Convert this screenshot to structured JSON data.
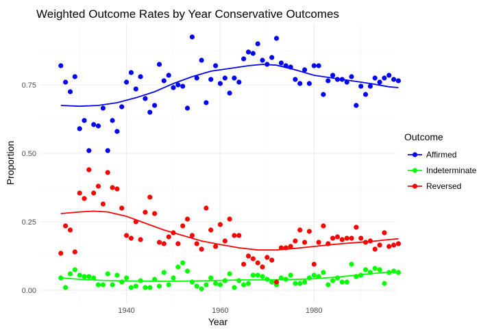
{
  "chart_data": {
    "type": "scatter",
    "title": "Weighted Outcome Rates by Year Conservative Outcomes",
    "xlabel": "Year",
    "ylabel": "Proportion",
    "xlim": [
      1921.5,
      1997.5
    ],
    "ylim": [
      -0.045,
      0.975
    ],
    "x_ticks": [
      1940,
      1960,
      1980
    ],
    "y_ticks": [
      0.0,
      0.25,
      0.5,
      0.75
    ],
    "y_tick_labels": [
      "0.00",
      "0.25",
      "0.50",
      "0.75"
    ],
    "grid": true,
    "legend_position": "right",
    "legend_title": "Outcome",
    "series": [
      {
        "name": "Affirmed",
        "color": "#0000ff",
        "points": [
          [
            1926,
            0.82
          ],
          [
            1927,
            0.76
          ],
          [
            1928,
            0.725
          ],
          [
            1929,
            0.78
          ],
          [
            1930,
            0.59
          ],
          [
            1931,
            0.62
          ],
          [
            1932,
            0.51
          ],
          [
            1933,
            0.605
          ],
          [
            1934,
            0.6
          ],
          [
            1935,
            0.665
          ],
          [
            1936,
            0.51
          ],
          [
            1937,
            0.62
          ],
          [
            1938,
            0.58
          ],
          [
            1939,
            0.67
          ],
          [
            1940,
            0.76
          ],
          [
            1941,
            0.795
          ],
          [
            1942,
            0.735
          ],
          [
            1943,
            0.78
          ],
          [
            1944,
            0.7
          ],
          [
            1945,
            0.65
          ],
          [
            1946,
            0.675
          ],
          [
            1947,
            0.825
          ],
          [
            1948,
            0.765
          ],
          [
            1949,
            0.785
          ],
          [
            1950,
            0.74
          ],
          [
            1951,
            0.75
          ],
          [
            1952,
            0.745
          ],
          [
            1953,
            0.665
          ],
          [
            1954,
            0.925
          ],
          [
            1955,
            0.775
          ],
          [
            1956,
            0.84
          ],
          [
            1957,
            0.685
          ],
          [
            1958,
            0.77
          ],
          [
            1959,
            0.82
          ],
          [
            1960,
            0.755
          ],
          [
            1961,
            0.775
          ],
          [
            1962,
            0.72
          ],
          [
            1963,
            0.775
          ],
          [
            1964,
            0.76
          ],
          [
            1965,
            0.845
          ],
          [
            1966,
            0.87
          ],
          [
            1967,
            0.865
          ],
          [
            1968,
            0.9
          ],
          [
            1969,
            0.84
          ],
          [
            1970,
            0.825
          ],
          [
            1971,
            0.85
          ],
          [
            1972,
            0.92
          ],
          [
            1973,
            0.83
          ],
          [
            1974,
            0.82
          ],
          [
            1975,
            0.815
          ],
          [
            1976,
            0.77
          ],
          [
            1977,
            0.755
          ],
          [
            1978,
            0.805
          ],
          [
            1979,
            0.755
          ],
          [
            1980,
            0.82
          ],
          [
            1981,
            0.82
          ],
          [
            1982,
            0.715
          ],
          [
            1983,
            0.765
          ],
          [
            1984,
            0.785
          ],
          [
            1985,
            0.77
          ],
          [
            1986,
            0.77
          ],
          [
            1987,
            0.76
          ],
          [
            1988,
            0.78
          ],
          [
            1989,
            0.675
          ],
          [
            1990,
            0.745
          ],
          [
            1991,
            0.715
          ],
          [
            1992,
            0.745
          ],
          [
            1993,
            0.775
          ],
          [
            1994,
            0.76
          ],
          [
            1995,
            0.775
          ],
          [
            1996,
            0.785
          ],
          [
            1997,
            0.77
          ],
          [
            1998,
            0.765
          ]
        ],
        "trend": [
          [
            1926,
            0.675
          ],
          [
            1930,
            0.672
          ],
          [
            1934,
            0.675
          ],
          [
            1938,
            0.685
          ],
          [
            1942,
            0.703
          ],
          [
            1946,
            0.725
          ],
          [
            1950,
            0.755
          ],
          [
            1954,
            0.78
          ],
          [
            1958,
            0.8
          ],
          [
            1962,
            0.81
          ],
          [
            1966,
            0.82
          ],
          [
            1969,
            0.825
          ],
          [
            1972,
            0.822
          ],
          [
            1976,
            0.805
          ],
          [
            1980,
            0.785
          ],
          [
            1984,
            0.775
          ],
          [
            1988,
            0.765
          ],
          [
            1992,
            0.755
          ],
          [
            1996,
            0.743
          ],
          [
            1998,
            0.74
          ]
        ]
      },
      {
        "name": "Indeterminate",
        "color": "#00ff00",
        "points": [
          [
            1926,
            0.045
          ],
          [
            1927,
            0.01
          ],
          [
            1928,
            0.06
          ],
          [
            1929,
            0.075
          ],
          [
            1930,
            0.055
          ],
          [
            1931,
            0.05
          ],
          [
            1932,
            0.05
          ],
          [
            1933,
            0.045
          ],
          [
            1934,
            0.02
          ],
          [
            1935,
            0.02
          ],
          [
            1936,
            0.06
          ],
          [
            1937,
            0.02
          ],
          [
            1938,
            0.055
          ],
          [
            1939,
            0.03
          ],
          [
            1940,
            0.045
          ],
          [
            1941,
            0.01
          ],
          [
            1942,
            0.015
          ],
          [
            1943,
            0.035
          ],
          [
            1944,
            0.01
          ],
          [
            1945,
            0.01
          ],
          [
            1946,
            0.04
          ],
          [
            1947,
            0.015
          ],
          [
            1948,
            0.065
          ],
          [
            1949,
            0.02
          ],
          [
            1950,
            0.045
          ],
          [
            1951,
            0.085
          ],
          [
            1952,
            0.1
          ],
          [
            1953,
            0.07
          ],
          [
            1954,
            0.03
          ],
          [
            1955,
            0.015
          ],
          [
            1956,
            0.005
          ],
          [
            1957,
            0.02
          ],
          [
            1958,
            0.045
          ],
          [
            1959,
            0.025
          ],
          [
            1960,
            0.02
          ],
          [
            1961,
            0.035
          ],
          [
            1962,
            0.06
          ],
          [
            1963,
            0.01
          ],
          [
            1964,
            0.035
          ],
          [
            1965,
            0.02
          ],
          [
            1966,
            0.025
          ],
          [
            1967,
            0.055
          ],
          [
            1968,
            0.055
          ],
          [
            1969,
            0.05
          ],
          [
            1970,
            0.04
          ],
          [
            1971,
            0.03
          ],
          [
            1972,
            0.02
          ],
          [
            1973,
            0.045
          ],
          [
            1974,
            0.04
          ],
          [
            1975,
            0.055
          ],
          [
            1976,
            0.025
          ],
          [
            1977,
            0.025
          ],
          [
            1978,
            0.03
          ],
          [
            1979,
            0.045
          ],
          [
            1980,
            0.055
          ],
          [
            1981,
            0.05
          ],
          [
            1982,
            0.065
          ],
          [
            1983,
            0.02
          ],
          [
            1984,
            0.035
          ],
          [
            1985,
            0.045
          ],
          [
            1986,
            0.03
          ],
          [
            1987,
            0.03
          ],
          [
            1988,
            0.095
          ],
          [
            1989,
            0.05
          ],
          [
            1990,
            0.055
          ],
          [
            1991,
            0.075
          ],
          [
            1992,
            0.065
          ],
          [
            1993,
            0.08
          ],
          [
            1994,
            0.075
          ],
          [
            1995,
            0.025
          ],
          [
            1996,
            0.065
          ],
          [
            1997,
            0.07
          ],
          [
            1998,
            0.065
          ]
        ],
        "trend": [
          [
            1926,
            0.045
          ],
          [
            1930,
            0.04
          ],
          [
            1935,
            0.036
          ],
          [
            1940,
            0.034
          ],
          [
            1945,
            0.033
          ],
          [
            1950,
            0.033
          ],
          [
            1955,
            0.034
          ],
          [
            1960,
            0.036
          ],
          [
            1965,
            0.038
          ],
          [
            1970,
            0.038
          ],
          [
            1975,
            0.039
          ],
          [
            1980,
            0.042
          ],
          [
            1985,
            0.048
          ],
          [
            1990,
            0.057
          ],
          [
            1995,
            0.065
          ],
          [
            1998,
            0.068
          ]
        ]
      },
      {
        "name": "Reversed",
        "color": "#ff0000",
        "points": [
          [
            1926,
            0.135
          ],
          [
            1927,
            0.235
          ],
          [
            1928,
            0.22
          ],
          [
            1929,
            0.14
          ],
          [
            1930,
            0.355
          ],
          [
            1931,
            0.335
          ],
          [
            1932,
            0.44
          ],
          [
            1933,
            0.355
          ],
          [
            1934,
            0.38
          ],
          [
            1935,
            0.315
          ],
          [
            1936,
            0.43
          ],
          [
            1937,
            0.375
          ],
          [
            1938,
            0.37
          ],
          [
            1939,
            0.3
          ],
          [
            1940,
            0.2
          ],
          [
            1941,
            0.19
          ],
          [
            1942,
            0.25
          ],
          [
            1943,
            0.185
          ],
          [
            1944,
            0.285
          ],
          [
            1945,
            0.34
          ],
          [
            1946,
            0.28
          ],
          [
            1947,
            0.175
          ],
          [
            1948,
            0.17
          ],
          [
            1949,
            0.195
          ],
          [
            1950,
            0.21
          ],
          [
            1951,
            0.17
          ],
          [
            1952,
            0.235
          ],
          [
            1953,
            0.26
          ],
          [
            1954,
            0.2
          ],
          [
            1955,
            0.17
          ],
          [
            1956,
            0.15
          ],
          [
            1957,
            0.3
          ],
          [
            1958,
            0.22
          ],
          [
            1959,
            0.16
          ],
          [
            1960,
            0.24
          ],
          [
            1961,
            0.18
          ],
          [
            1962,
            0.26
          ],
          [
            1963,
            0.2
          ],
          [
            1964,
            0.2
          ],
          [
            1965,
            0.095
          ],
          [
            1966,
            0.125
          ],
          [
            1967,
            0.115
          ],
          [
            1968,
            0.1
          ],
          [
            1969,
            0.085
          ],
          [
            1970,
            0.12
          ],
          [
            1971,
            0.11
          ],
          [
            1972,
            0.03
          ],
          [
            1973,
            0.155
          ],
          [
            1974,
            0.155
          ],
          [
            1975,
            0.16
          ],
          [
            1976,
            0.18
          ],
          [
            1977,
            0.22
          ],
          [
            1978,
            0.175
          ],
          [
            1979,
            0.215
          ],
          [
            1980,
            0.095
          ],
          [
            1981,
            0.175
          ],
          [
            1982,
            0.235
          ],
          [
            1983,
            0.17
          ],
          [
            1984,
            0.19
          ],
          [
            1985,
            0.195
          ],
          [
            1986,
            0.185
          ],
          [
            1987,
            0.19
          ],
          [
            1988,
            0.19
          ],
          [
            1989,
            0.23
          ],
          [
            1990,
            0.19
          ],
          [
            1991,
            0.175
          ],
          [
            1992,
            0.18
          ],
          [
            1993,
            0.15
          ],
          [
            1994,
            0.165
          ],
          [
            1995,
            0.21
          ],
          [
            1996,
            0.16
          ],
          [
            1997,
            0.165
          ],
          [
            1998,
            0.17
          ]
        ],
        "trend": [
          [
            1926,
            0.28
          ],
          [
            1930,
            0.286
          ],
          [
            1933,
            0.289
          ],
          [
            1936,
            0.286
          ],
          [
            1940,
            0.27
          ],
          [
            1944,
            0.245
          ],
          [
            1948,
            0.22
          ],
          [
            1952,
            0.2
          ],
          [
            1956,
            0.18
          ],
          [
            1960,
            0.167
          ],
          [
            1964,
            0.155
          ],
          [
            1968,
            0.147
          ],
          [
            1972,
            0.147
          ],
          [
            1976,
            0.153
          ],
          [
            1980,
            0.16
          ],
          [
            1984,
            0.167
          ],
          [
            1988,
            0.173
          ],
          [
            1992,
            0.178
          ],
          [
            1996,
            0.185
          ],
          [
            1998,
            0.188
          ]
        ]
      }
    ]
  }
}
